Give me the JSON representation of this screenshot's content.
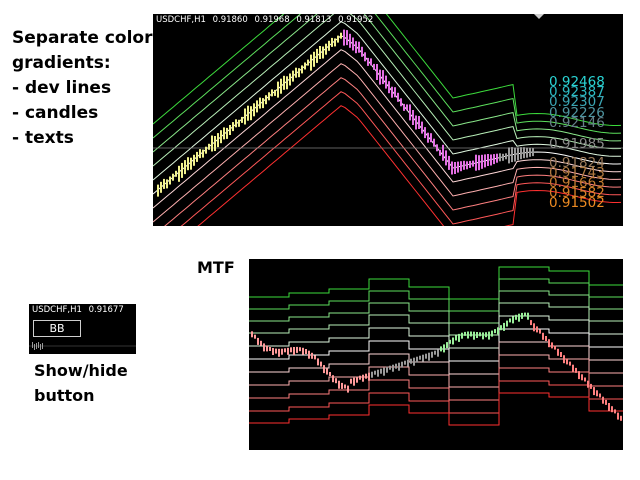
{
  "captions": {
    "features": [
      "Separate color",
      "gradients:",
      "- dev lines",
      "- candles",
      "- texts"
    ],
    "mtf": "MTF",
    "button_desc": [
      "Show/hide",
      "button"
    ]
  },
  "main_chart": {
    "header": {
      "symbol": "USDCHF,H1",
      "open": "0.91860",
      "high": "0.91968",
      "low": "0.91813",
      "close": "0.91952"
    },
    "price_labels": [
      {
        "text": "0.92468",
        "color": "#2ad4d4"
      },
      {
        "text": "0.92387",
        "color": "#2cbcc4"
      },
      {
        "text": "0.92307",
        "color": "#3aa6b4"
      },
      {
        "text": "0.92226",
        "color": "#4e94a0"
      },
      {
        "text": "0.92146",
        "color": "#66808a"
      },
      {
        "text": "0.91985",
        "color": "#8a8a8a"
      },
      {
        "text": "0.91824",
        "color": "#9a7a5a"
      },
      {
        "text": "0.91743",
        "color": "#b07a40"
      },
      {
        "text": "0.91663",
        "color": "#c47c30"
      },
      {
        "text": "0.91582",
        "color": "#d88228"
      },
      {
        "text": "0.91502",
        "color": "#ec8a22"
      }
    ]
  },
  "mini_chart": {
    "header": {
      "symbol": "USDCHF,H1",
      "price": "0.91677"
    },
    "button_label": "BB"
  },
  "colors": {
    "upper_band": "#3cdc3c",
    "mid_band": "#ffffff",
    "lower_band": "#ff3030",
    "candles_up": "#f0f07a",
    "candles_down": "#e060e0"
  }
}
